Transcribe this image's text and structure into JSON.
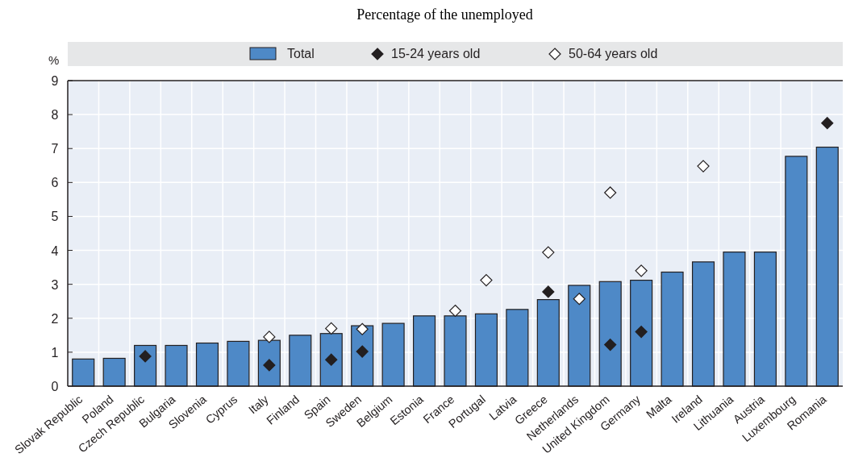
{
  "chart_data": {
    "type": "bar",
    "subtitle": "Percentage of the unemployed",
    "ylabel": "%",
    "categories": [
      "Slovak Republic",
      "Poland",
      "Czech Republic",
      "Bulgaria",
      "Slovenia",
      "Cyprus",
      "Italy",
      "Finland",
      "Spain",
      "Sweden",
      "Belgium",
      "Estonia",
      "France",
      "Portugal",
      "Latvia",
      "Greece",
      "Netherlands",
      "United Kingdom",
      "Germany",
      "Malta",
      "Ireland",
      "Lithuania",
      "Austria",
      "Luxembourg",
      "Romania"
    ],
    "series": [
      {
        "name": "Total",
        "type": "bar",
        "color": "#4e89c7",
        "values": [
          0.8,
          0.82,
          1.2,
          1.2,
          1.27,
          1.32,
          1.35,
          1.5,
          1.55,
          1.78,
          1.85,
          2.07,
          2.07,
          2.13,
          2.26,
          2.55,
          2.97,
          3.08,
          3.12,
          3.36,
          3.66,
          3.95,
          3.95,
          6.77,
          7.04
        ]
      },
      {
        "name": "15-24 years old",
        "type": "scatter",
        "color": "#231f20",
        "marker": "diamond",
        "x": [
          "Czech Republic",
          "Italy",
          "Spain",
          "Sweden",
          "Greece",
          "United Kingdom",
          "Germany",
          "Romania"
        ],
        "values": [
          0.88,
          0.62,
          0.78,
          1.02,
          2.78,
          1.22,
          1.6,
          7.75
        ]
      },
      {
        "name": "50-64 years old",
        "type": "scatter",
        "color": "#ffffff",
        "marker": "diamond",
        "x": [
          "Italy",
          "Spain",
          "Sweden",
          "France",
          "Portugal",
          "Greece",
          "Netherlands",
          "United Kingdom",
          "Germany",
          "Ireland"
        ],
        "values": [
          1.45,
          1.7,
          1.68,
          2.22,
          3.12,
          3.94,
          2.57,
          5.7,
          3.4,
          6.48
        ]
      }
    ],
    "ylim": [
      0,
      9
    ],
    "yticks": [
      0,
      1,
      2,
      3,
      4,
      5,
      6,
      7,
      8,
      9
    ],
    "grid": true,
    "legend": "top"
  }
}
